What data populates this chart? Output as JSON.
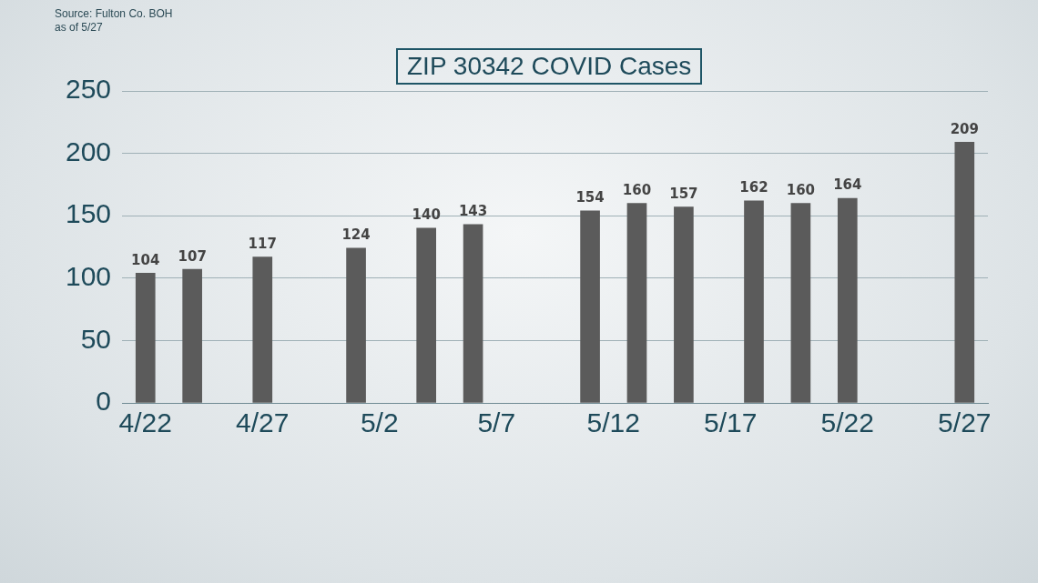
{
  "chart_data": {
    "type": "bar",
    "title": "ZIP 30342 COVID Cases",
    "annotations": [
      "Source: Fulton Co. BOH",
      "as of 5/27"
    ],
    "x": [
      "--04-22",
      "--04-24",
      "--04-27",
      "--05-01",
      "--05-04",
      "--05-06",
      "--05-11",
      "--05-13",
      "--05-15",
      "--05-18",
      "--05-20",
      "--05-22",
      "--05-27"
    ],
    "values": [
      104,
      107,
      117,
      124,
      140,
      143,
      154,
      160,
      157,
      162,
      160,
      164,
      209
    ],
    "color": "#5b5b5b",
    "data_labels": true,
    "ylim": [
      0,
      250
    ],
    "yticks": [
      0,
      50,
      100,
      150,
      200,
      250
    ],
    "xlim": [
      "--04-21",
      "--05-28"
    ],
    "xticks": [
      {
        "value": "--04-22",
        "label": "4/22"
      },
      {
        "value": "--04-27",
        "label": "4/27"
      },
      {
        "value": "--05-02",
        "label": "5/2"
      },
      {
        "value": "--05-07",
        "label": "5/7"
      },
      {
        "value": "--05-12",
        "label": "5/12"
      },
      {
        "value": "--05-17",
        "label": "5/17"
      },
      {
        "value": "--05-22",
        "label": "5/22"
      },
      {
        "value": "--05-27",
        "label": "5/27"
      }
    ],
    "grid": "y",
    "legend": false
  }
}
